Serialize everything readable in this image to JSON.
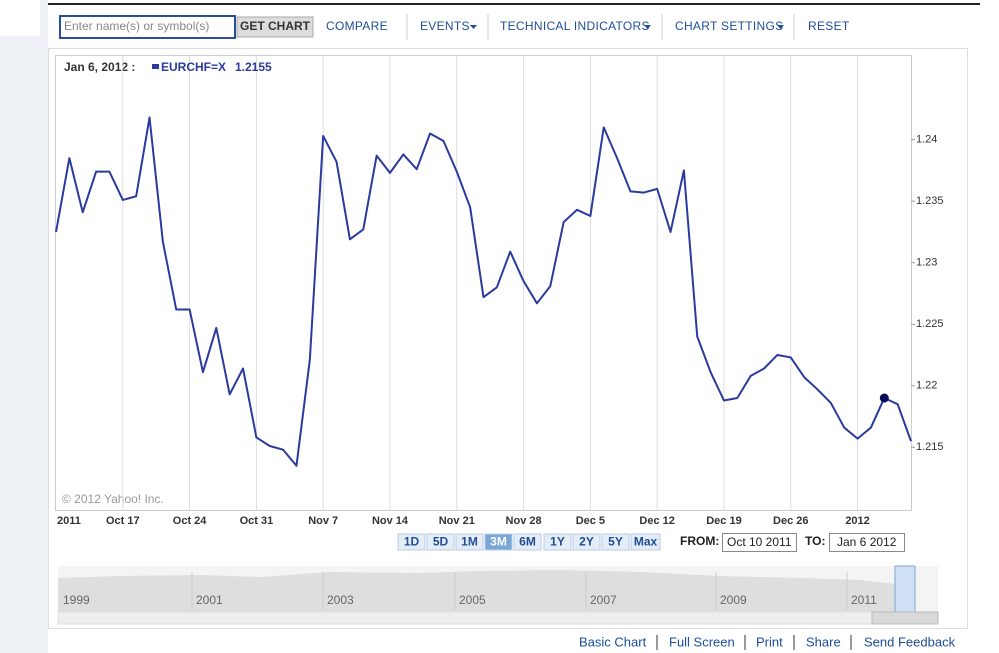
{
  "toolbar": {
    "symbol_placeholder": "Enter name(s) or symbol(s)",
    "get_chart": "GET CHART",
    "compare": "COMPARE",
    "events": "EVENTS",
    "technical_indicators": "TECHNICAL INDICATORS",
    "chart_settings": "CHART SETTINGS",
    "reset": "RESET"
  },
  "legend_date": "Jan 6, 2012 :",
  "copyright": "© 2012 Yahoo! Inc.",
  "range_buttons": [
    "1D",
    "5D",
    "1M",
    "3M",
    "6M",
    "1Y",
    "2Y",
    "5Y",
    "Max"
  ],
  "from_label": "FROM:",
  "from_value": "Oct 10 2011",
  "to_label": "TO:",
  "to_value": "Jan 6 2012",
  "navigator_years": [
    "1999",
    "2001",
    "2003",
    "2005",
    "2007",
    "2009",
    "2011"
  ],
  "footer_links": [
    "Basic Chart",
    "Full Screen",
    "Print",
    "Share",
    "Send Feedback"
  ],
  "chart_data": {
    "type": "line",
    "categories": [
      "2011",
      null,
      null,
      null,
      null,
      "Oct 17",
      null,
      null,
      null,
      null,
      "Oct 24",
      null,
      null,
      null,
      null,
      "Oct 31",
      null,
      null,
      null,
      null,
      "Nov 7",
      null,
      null,
      null,
      null,
      "Nov 14",
      null,
      null,
      null,
      null,
      "Nov 21",
      null,
      null,
      null,
      null,
      "Nov 28",
      null,
      null,
      null,
      null,
      "Dec 5",
      null,
      null,
      null,
      null,
      "Dec 12",
      null,
      null,
      null,
      null,
      "Dec 19",
      null,
      null,
      null,
      null,
      "Dec 26",
      null,
      null,
      null,
      null,
      "2012",
      null,
      null,
      null,
      null
    ],
    "series": [
      {
        "name": "EURCHF=X",
        "color": "#2a3a9e",
        "values": [
          1.2325,
          1.2385,
          1.2341,
          1.2374,
          1.2374,
          1.2351,
          1.2354,
          1.2418,
          1.2317,
          1.2262,
          1.2262,
          1.2211,
          1.2247,
          1.2193,
          1.2214,
          1.2158,
          1.2151,
          1.2148,
          1.2135,
          1.2221,
          1.2403,
          1.2382,
          1.2319,
          1.2327,
          1.2387,
          1.2373,
          1.2388,
          1.2376,
          1.2405,
          1.2399,
          1.2374,
          1.2345,
          1.2272,
          1.228,
          1.2309,
          1.2285,
          1.2267,
          1.2281,
          1.2333,
          1.2343,
          1.2338,
          1.241,
          1.2385,
          1.2358,
          1.2357,
          1.236,
          1.2325,
          1.2375,
          1.224,
          1.2211,
          1.2188,
          1.219,
          1.2208,
          1.2214,
          1.2225,
          1.2223,
          1.2207,
          1.2197,
          1.2186,
          1.2166,
          1.2157,
          1.2166,
          1.219,
          1.2185,
          1.2155
        ]
      }
    ],
    "ylim": [
      1.2099,
      1.2468
    ],
    "yticks": [
      1.215,
      1.22,
      1.225,
      1.23,
      1.235,
      1.24
    ],
    "grid": "x"
  }
}
